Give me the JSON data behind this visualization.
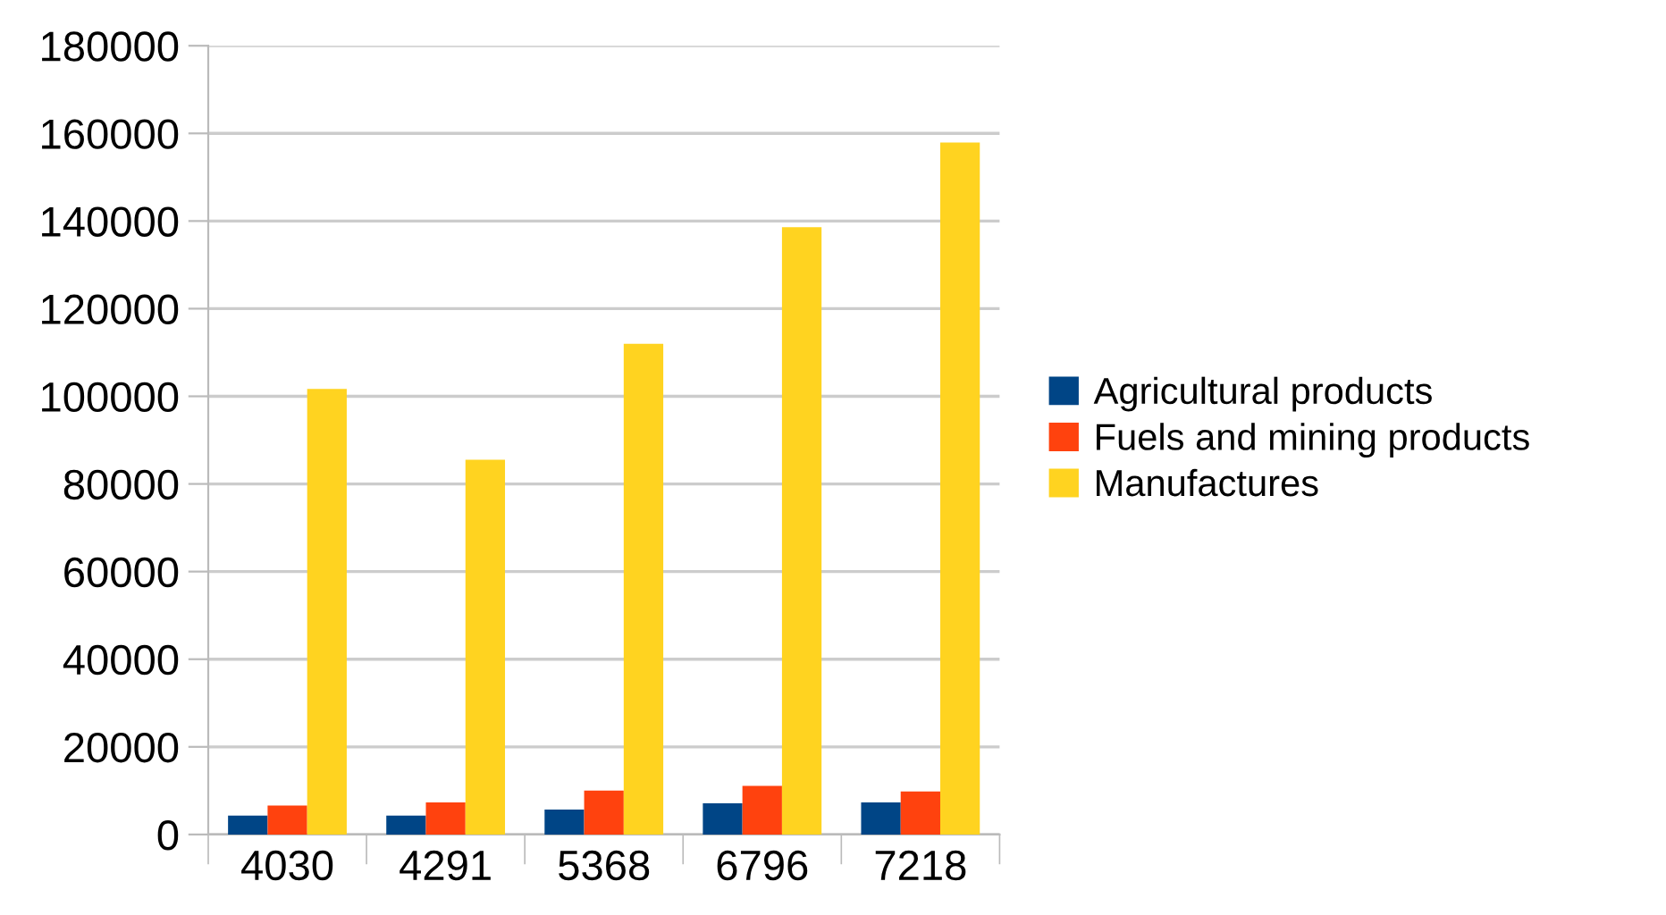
{
  "chart_data": {
    "type": "bar",
    "categories": [
      "4030",
      "4291",
      "5368",
      "6796",
      "7218"
    ],
    "series": [
      {
        "name": "Agricultural products",
        "color": "#004586",
        "values": [
          4300,
          4300,
          5700,
          7100,
          7300
        ]
      },
      {
        "name": "Fuels and mining products",
        "color": "#ff420e",
        "values": [
          6600,
          7300,
          10000,
          11100,
          9800
        ]
      },
      {
        "name": "Manufactures",
        "color": "#ffd320",
        "values": [
          101700,
          85500,
          112000,
          138600,
          157900
        ]
      }
    ],
    "ylim": [
      0,
      180000
    ],
    "yticks": [
      0,
      20000,
      40000,
      60000,
      80000,
      100000,
      120000,
      140000,
      160000,
      180000
    ],
    "grid": "y",
    "legend": "right"
  }
}
